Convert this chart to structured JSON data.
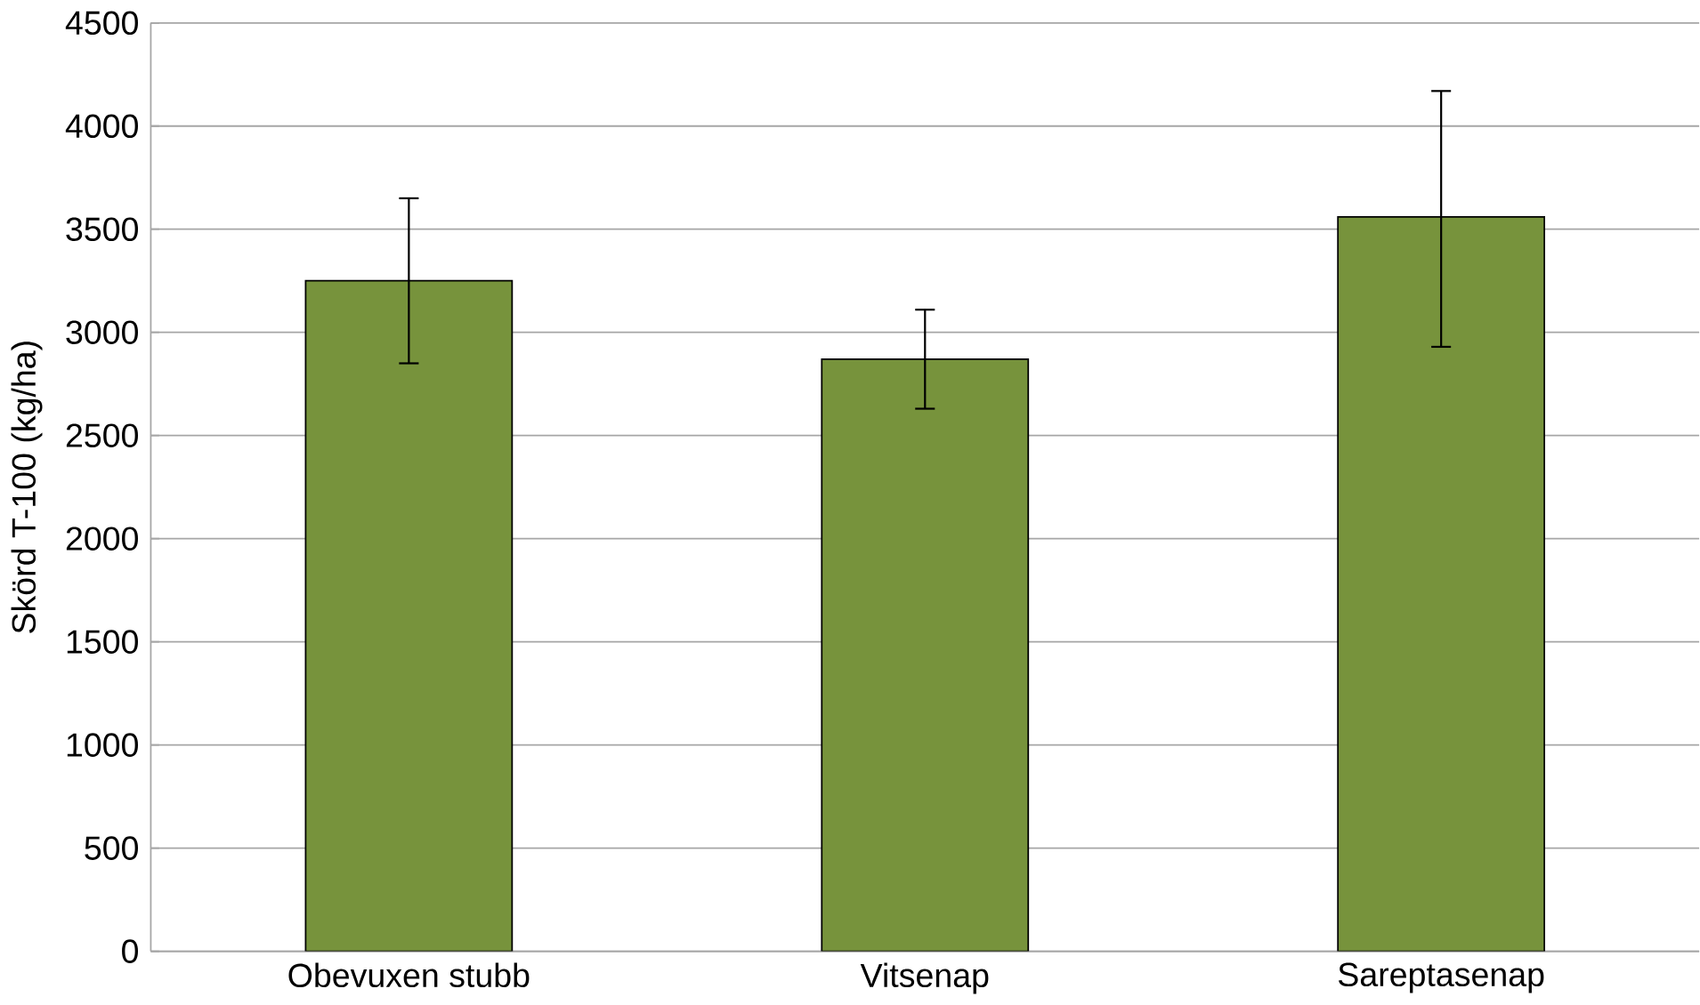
{
  "chart_data": {
    "type": "bar",
    "ylabel": "Skörd T-100 (kg/ha)",
    "categories": [
      "Obevuxen stubb",
      "Vitsenap",
      "Sareptasenap"
    ],
    "values": [
      3250,
      2870,
      3560
    ],
    "errors": [
      [
        2850,
        3650
      ],
      [
        2630,
        3110
      ],
      [
        2930,
        4170
      ]
    ],
    "color": "#77933c",
    "ylim": [
      0,
      4500
    ],
    "yticks": [
      0,
      500,
      1000,
      1500,
      2000,
      2500,
      3000,
      3500,
      4000,
      4500
    ],
    "grid": "y"
  }
}
